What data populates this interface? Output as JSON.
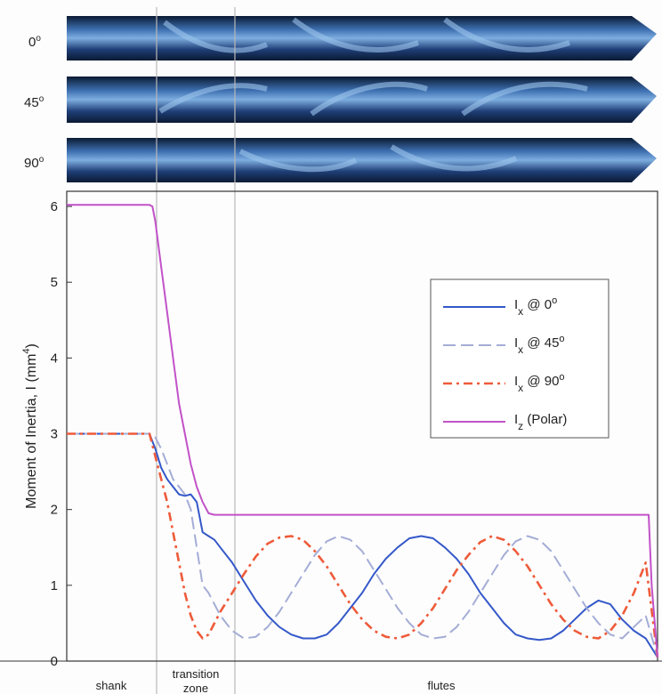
{
  "drill_images": [
    {
      "label": "0",
      "deg": "o"
    },
    {
      "label": "45",
      "deg": "o"
    },
    {
      "label": "90",
      "deg": "o"
    }
  ],
  "zones": {
    "shank": "shank",
    "transition_1": "transition",
    "transition_2": "zone",
    "flutes": "flutes"
  },
  "colors": {
    "ix0": "#3458c9",
    "ix45": "#a4add6",
    "ix90": "#ee5b3a",
    "iz": "#c252c8",
    "drill_dark": "#0b1a33",
    "drill_light": "#7eaee0"
  },
  "chart_data": {
    "type": "line",
    "title": "",
    "xlabel": "",
    "ylabel": "Moment of Inertia, I (mm",
    "ylabel_sup": "4",
    "ylabel_close": ")",
    "ylim": [
      0,
      6.2
    ],
    "yticks": [
      "0",
      "1",
      "2",
      "3",
      "4",
      "5",
      "6"
    ],
    "xlim": [
      0,
      100
    ],
    "grid": false,
    "legend_position": "upper-right",
    "legend": [
      {
        "main": "I",
        "sub": "x",
        "rest": " @ 0",
        "sup": "o"
      },
      {
        "main": "I",
        "sub": "x",
        "rest": " @ 45",
        "sup": "o"
      },
      {
        "main": "I",
        "sub": "x",
        "rest": " @ 90",
        "sup": "o"
      },
      {
        "main": "I",
        "sub": "z",
        "rest": " (Polar)",
        "sup": ""
      }
    ],
    "series": [
      {
        "key": "ix0",
        "style": "solid",
        "x": [
          0,
          14,
          15,
          16,
          17,
          18,
          19,
          20,
          21,
          22,
          23,
          24,
          25,
          26,
          28,
          30,
          32,
          34,
          36,
          38,
          40,
          42,
          44,
          46,
          48,
          50,
          52,
          54,
          56,
          58,
          60,
          62,
          64,
          66,
          68,
          70,
          72,
          74,
          76,
          78,
          80,
          82,
          84,
          86,
          88,
          90,
          92,
          94,
          96,
          98,
          100
        ],
        "y": [
          3.0,
          3.0,
          2.8,
          2.55,
          2.4,
          2.3,
          2.2,
          2.18,
          2.2,
          2.1,
          1.7,
          1.65,
          1.6,
          1.5,
          1.3,
          1.05,
          0.8,
          0.6,
          0.45,
          0.35,
          0.3,
          0.3,
          0.35,
          0.5,
          0.7,
          0.9,
          1.15,
          1.35,
          1.5,
          1.62,
          1.65,
          1.62,
          1.5,
          1.35,
          1.15,
          0.9,
          0.7,
          0.5,
          0.35,
          0.3,
          0.28,
          0.3,
          0.4,
          0.55,
          0.7,
          0.8,
          0.75,
          0.55,
          0.4,
          0.3,
          0.05
        ]
      },
      {
        "key": "ix45",
        "style": "dashed",
        "x": [
          0,
          14,
          15,
          16,
          17,
          18,
          19,
          20,
          21,
          22,
          23,
          24,
          25,
          26,
          28,
          30,
          32,
          34,
          36,
          38,
          40,
          42,
          44,
          46,
          48,
          50,
          52,
          54,
          56,
          58,
          60,
          62,
          64,
          66,
          68,
          70,
          72,
          74,
          76,
          78,
          80,
          82,
          84,
          86,
          88,
          90,
          92,
          94,
          96,
          98,
          100
        ],
        "y": [
          3.0,
          3.0,
          2.95,
          2.8,
          2.6,
          2.4,
          2.3,
          2.2,
          2.0,
          1.5,
          1.0,
          0.9,
          0.75,
          0.6,
          0.4,
          0.3,
          0.32,
          0.45,
          0.65,
          0.9,
          1.15,
          1.4,
          1.58,
          1.65,
          1.6,
          1.45,
          1.2,
          0.95,
          0.7,
          0.5,
          0.35,
          0.3,
          0.32,
          0.45,
          0.65,
          0.9,
          1.15,
          1.4,
          1.58,
          1.65,
          1.6,
          1.45,
          1.2,
          0.95,
          0.7,
          0.5,
          0.35,
          0.3,
          0.45,
          0.6,
          0.05
        ]
      },
      {
        "key": "ix90",
        "style": "dashdot",
        "x": [
          0,
          14,
          15,
          16,
          17,
          18,
          19,
          20,
          21,
          22,
          23,
          24,
          25,
          26,
          28,
          30,
          32,
          34,
          36,
          38,
          40,
          42,
          44,
          46,
          48,
          50,
          52,
          54,
          56,
          58,
          60,
          62,
          64,
          66,
          68,
          70,
          72,
          74,
          76,
          78,
          80,
          82,
          84,
          86,
          88,
          90,
          92,
          94,
          96,
          98,
          100
        ],
        "y": [
          3.0,
          3.0,
          2.7,
          2.4,
          2.1,
          1.7,
          1.3,
          0.9,
          0.6,
          0.4,
          0.3,
          0.35,
          0.5,
          0.65,
          0.9,
          1.15,
          1.38,
          1.55,
          1.63,
          1.65,
          1.6,
          1.45,
          1.25,
          1.0,
          0.75,
          0.55,
          0.4,
          0.32,
          0.3,
          0.35,
          0.5,
          0.7,
          0.95,
          1.2,
          1.4,
          1.57,
          1.65,
          1.6,
          1.45,
          1.25,
          1.0,
          0.75,
          0.55,
          0.4,
          0.32,
          0.3,
          0.4,
          0.6,
          0.9,
          1.3,
          0.05
        ]
      },
      {
        "key": "iz",
        "style": "solid",
        "x": [
          0,
          14,
          14.5,
          15,
          16,
          17,
          18,
          19,
          20,
          21,
          22,
          23,
          24,
          25,
          26,
          98.5,
          99,
          100
        ],
        "y": [
          6.02,
          6.02,
          6.0,
          5.8,
          5.2,
          4.6,
          4.0,
          3.4,
          3.0,
          2.6,
          2.3,
          2.1,
          1.95,
          1.93,
          1.93,
          1.93,
          1.0,
          0.05
        ]
      }
    ]
  }
}
